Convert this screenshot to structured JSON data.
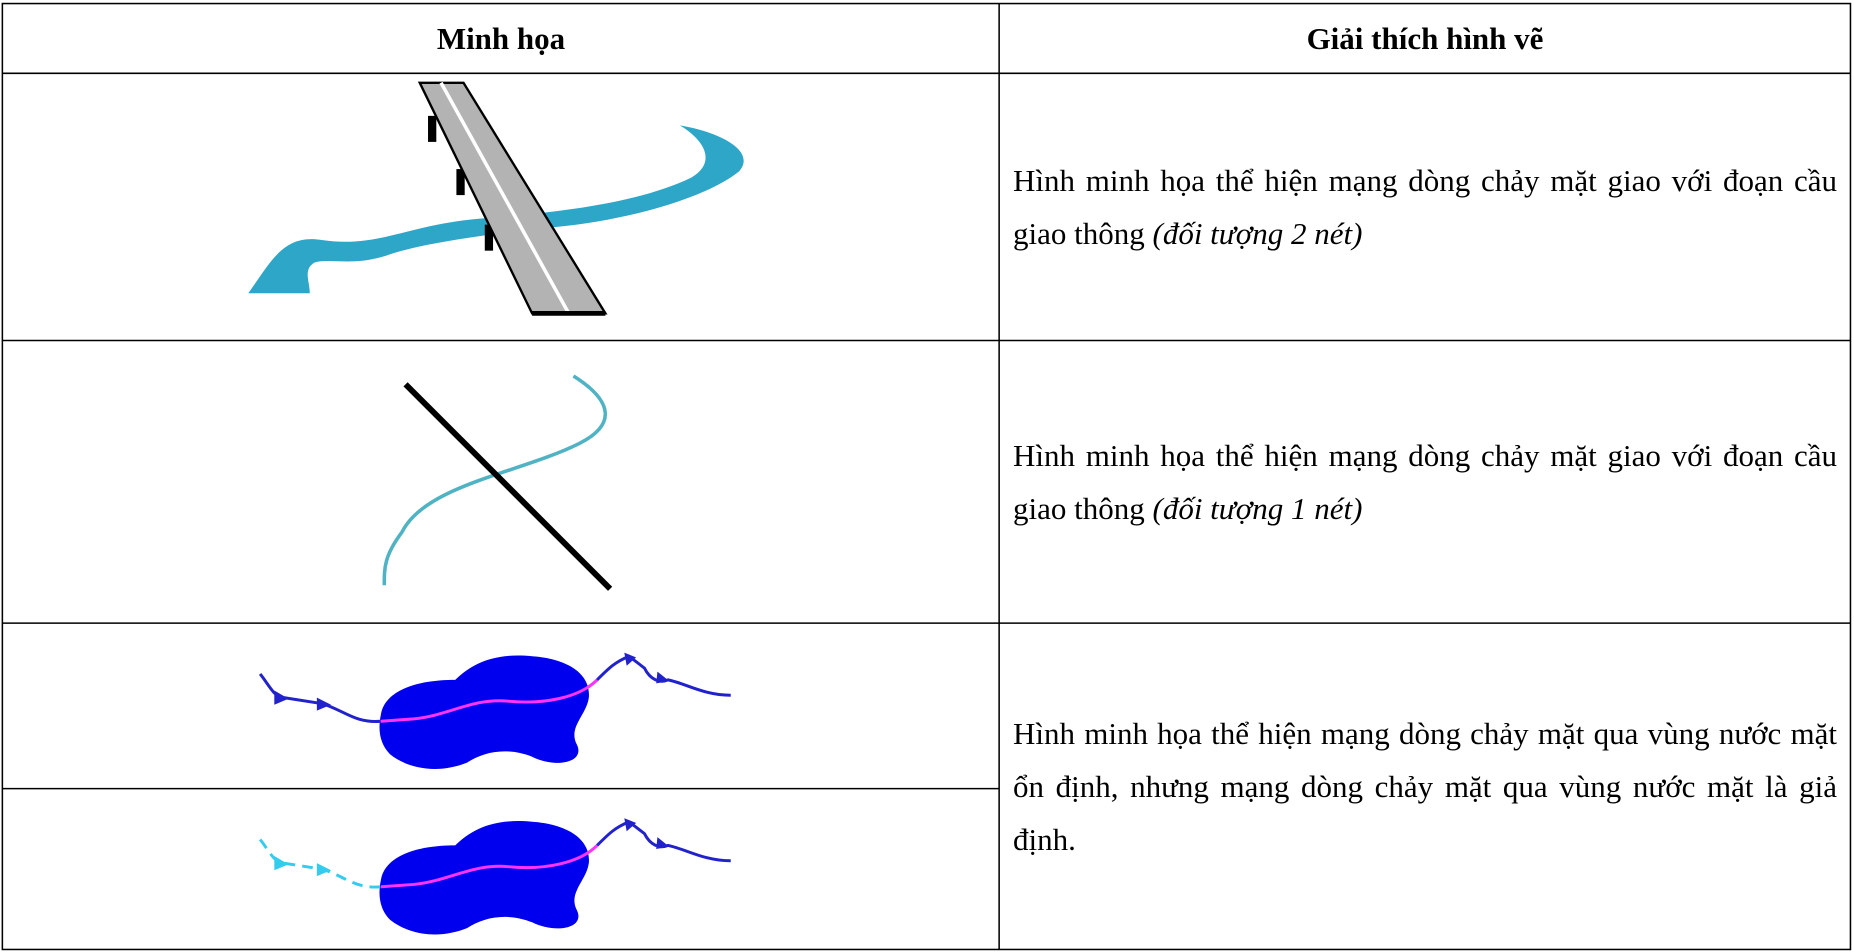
{
  "table": {
    "header": [
      "Minh họa",
      "Giải thích hình vẽ"
    ],
    "rows": [
      {
        "text": "Hình minh họa thể hiện mạng dòng chảy mặt giao với đoạn cầu giao thông",
        "italic": "(đối tượng 2 nét)"
      },
      {
        "text": "Hình minh họa thể hiện mạng dòng chảy mặt giao với đoạn cầu giao thông",
        "italic": "(đối tượng 1 nét)"
      },
      {
        "text": "Hình minh họa thể hiện mạng dòng chảy mặt qua vùng nước mặt ổn định, nhưng mạng dòng chảy mặt qua vùng nước mặt là giả định."
      }
    ]
  }
}
